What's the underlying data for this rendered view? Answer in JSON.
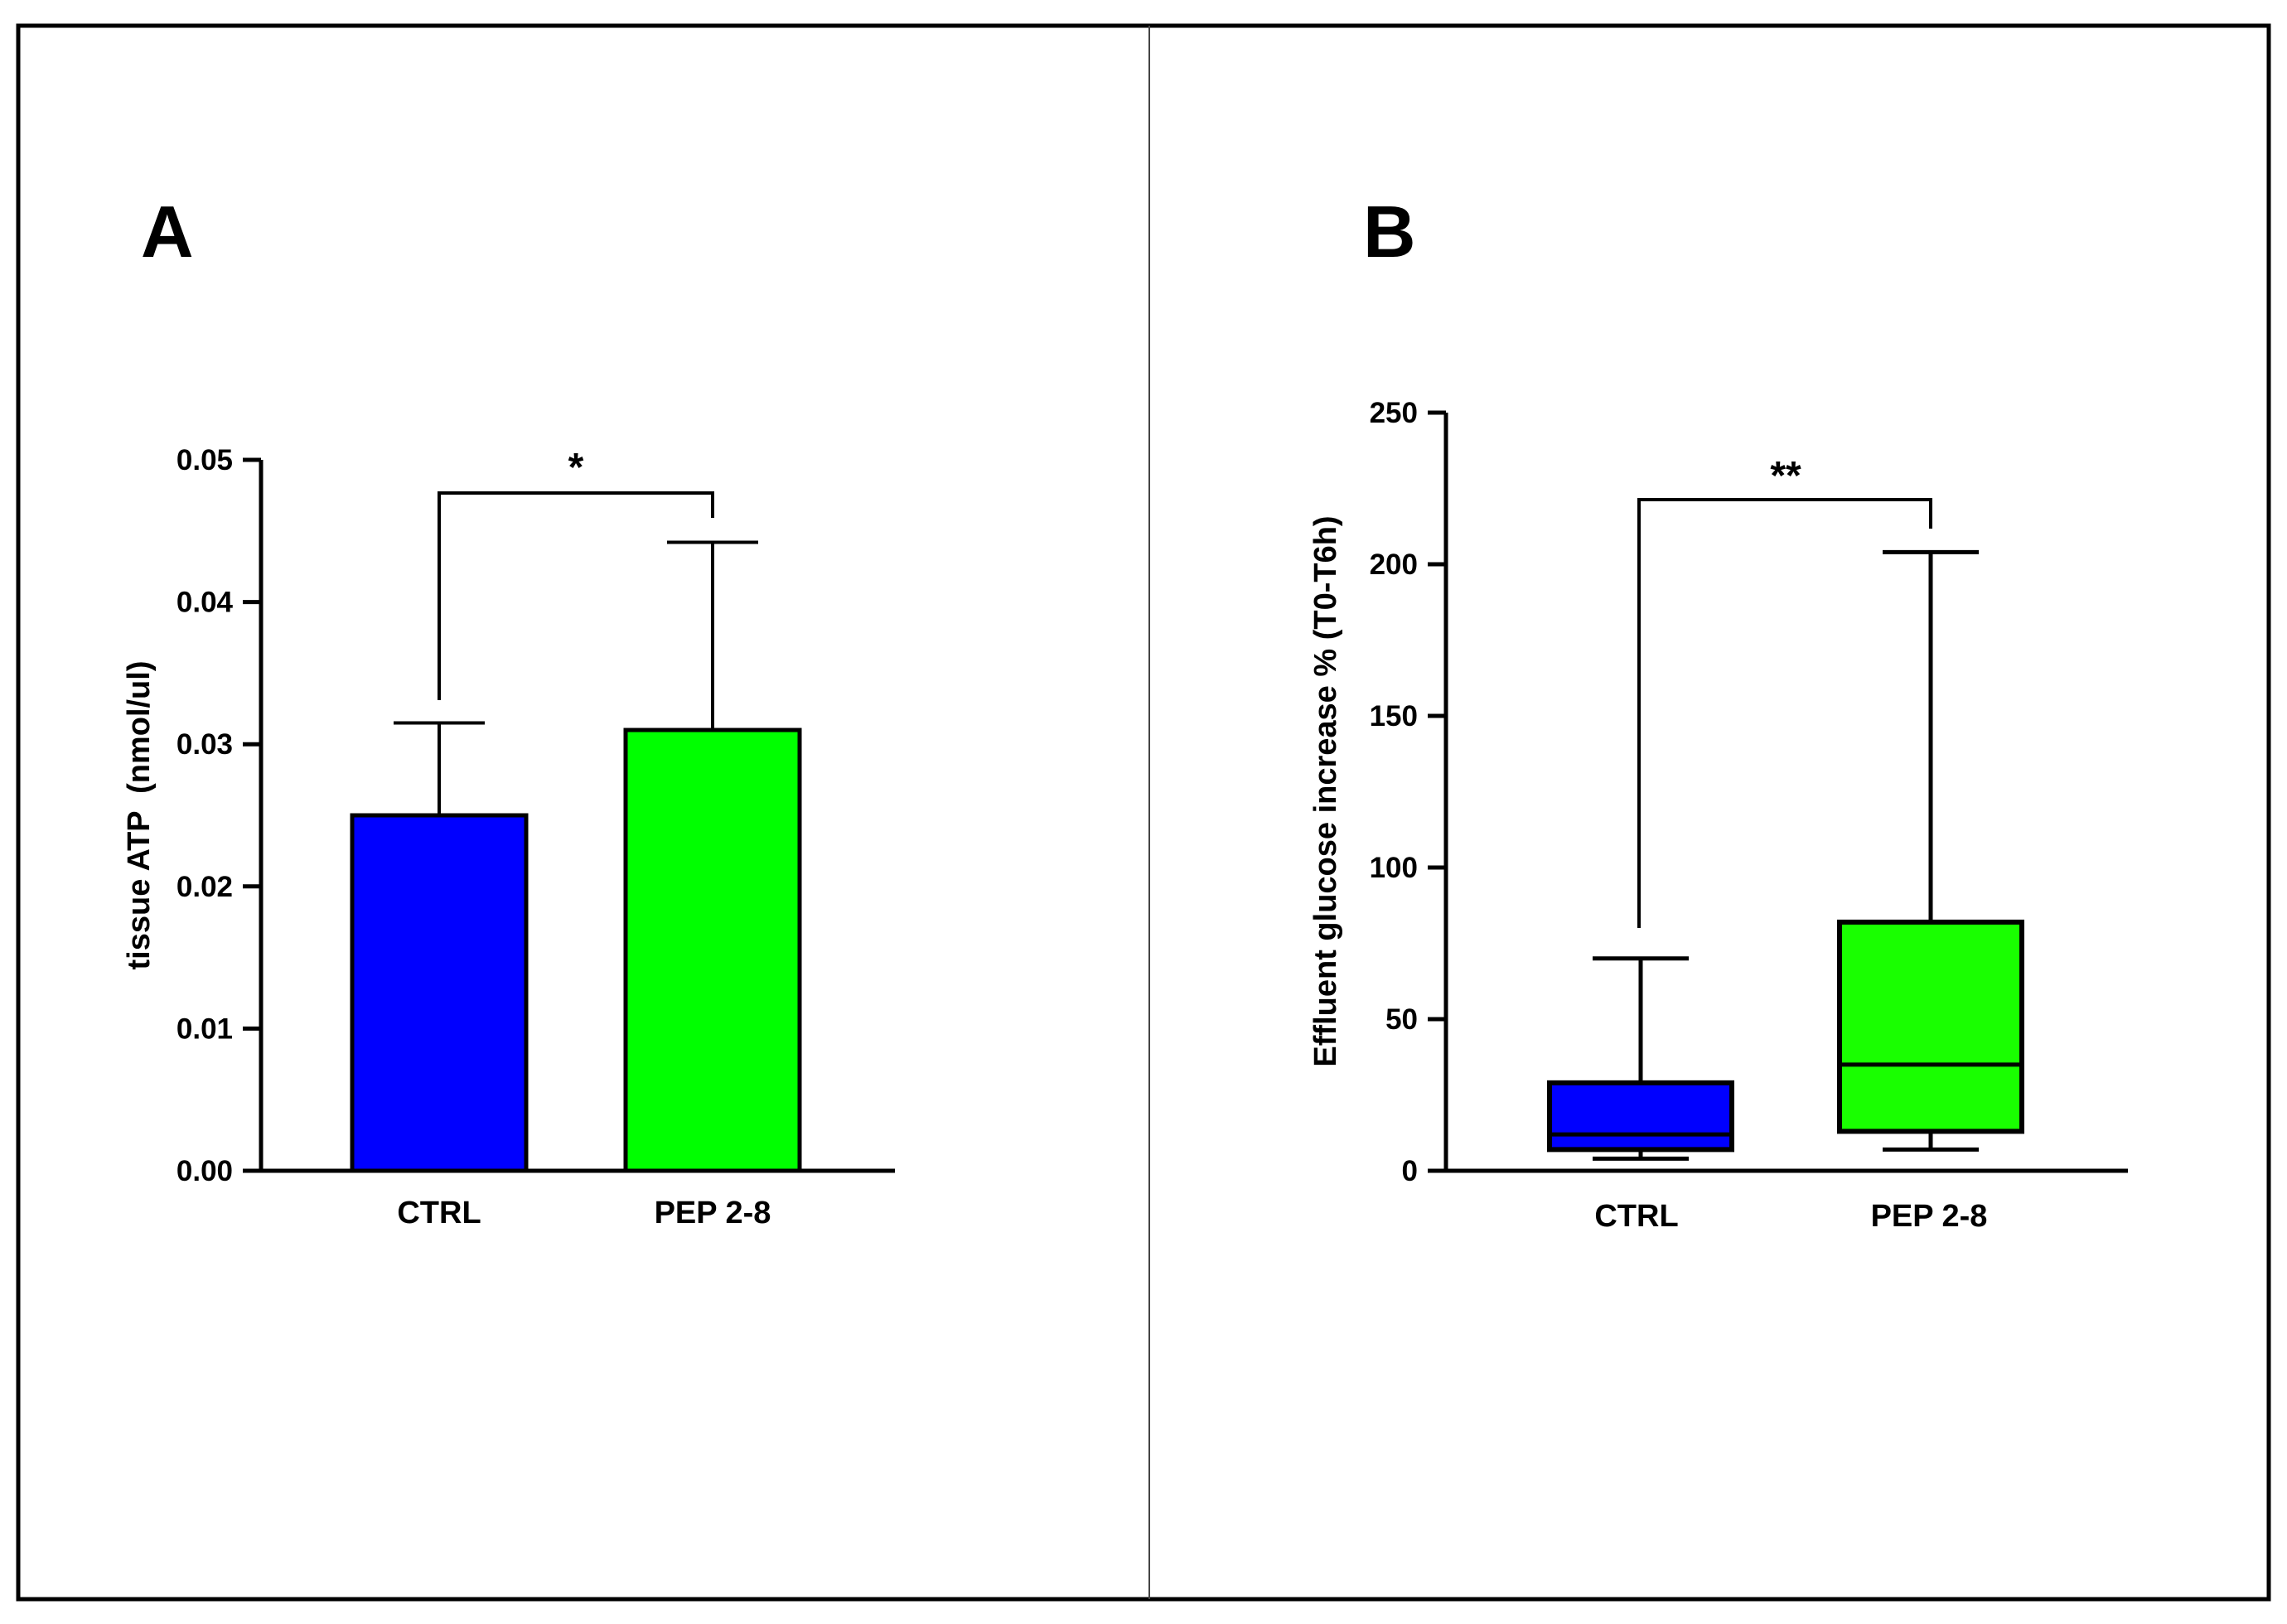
{
  "chart_data": [
    {
      "panel": "A",
      "type": "bar",
      "categories": [
        "CTRL",
        "PEP 2-8"
      ],
      "values": [
        0.025,
        0.031
      ],
      "error_upper": [
        0.0315,
        0.0442
      ],
      "colors": [
        "#0000ff",
        "#00ff00"
      ],
      "ylabel": "tissue ATP  (nmol/ul)",
      "ylim": [
        0,
        0.05
      ],
      "yticks": [
        "0.00",
        "0.01",
        "0.02",
        "0.03",
        "0.04",
        "0.05"
      ],
      "significance": {
        "label": "*",
        "between": [
          "CTRL",
          "PEP 2-8"
        ]
      }
    },
    {
      "panel": "B",
      "type": "box",
      "categories": [
        "CTRL",
        "PEP 2-8"
      ],
      "boxes": [
        {
          "min": 4,
          "q1": 7,
          "median": 12,
          "q3": 29,
          "max": 70
        },
        {
          "min": 7,
          "q1": 13,
          "median": 35,
          "q3": 82,
          "max": 204
        }
      ],
      "colors": [
        "#0000ff",
        "#19ff00"
      ],
      "ylabel": "Effluent glucose increase % (T0-T6h)",
      "ylim": [
        0,
        250
      ],
      "yticks": [
        "0",
        "50",
        "100",
        "150",
        "200",
        "250"
      ],
      "significance": {
        "label": "**",
        "between": [
          "CTRL",
          "PEP 2-8"
        ]
      }
    }
  ]
}
